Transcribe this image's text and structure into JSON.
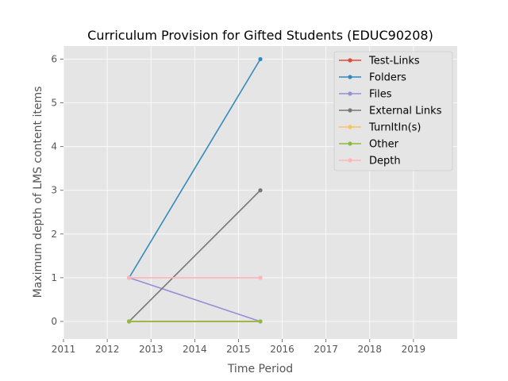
{
  "chart_data": {
    "type": "line",
    "title": "Curriculum Provision for Gifted Students (EDUC90208)",
    "xlabel": "Time Period",
    "ylabel": "Maximum depth of LMS content items",
    "xlim": [
      2011,
      2020
    ],
    "ylim": [
      -0.4,
      6.3
    ],
    "x_ticks": [
      "2011",
      "2012",
      "2013",
      "2014",
      "2015",
      "2016",
      "2017",
      "2018",
      "2019"
    ],
    "y_ticks": [
      "0",
      "1",
      "2",
      "3",
      "4",
      "5",
      "6"
    ],
    "grid": true,
    "legend_position": "top-right",
    "x": [
      2012.5,
      2015.5
    ],
    "series": [
      {
        "name": "Test-Links",
        "color": "#e24a33",
        "values": [
          0,
          0
        ]
      },
      {
        "name": "Folders",
        "color": "#348abd",
        "values": [
          1,
          6
        ]
      },
      {
        "name": "Files",
        "color": "#988ed5",
        "values": [
          1,
          0
        ]
      },
      {
        "name": "External Links",
        "color": "#777777",
        "values": [
          0,
          3
        ]
      },
      {
        "name": "TurnItIn(s)",
        "color": "#fbc15e",
        "values": [
          0,
          0
        ]
      },
      {
        "name": "Other",
        "color": "#8eba42",
        "values": [
          0,
          0
        ]
      },
      {
        "name": "Depth",
        "color": "#ffb5b8",
        "values": [
          1,
          1
        ]
      }
    ]
  }
}
